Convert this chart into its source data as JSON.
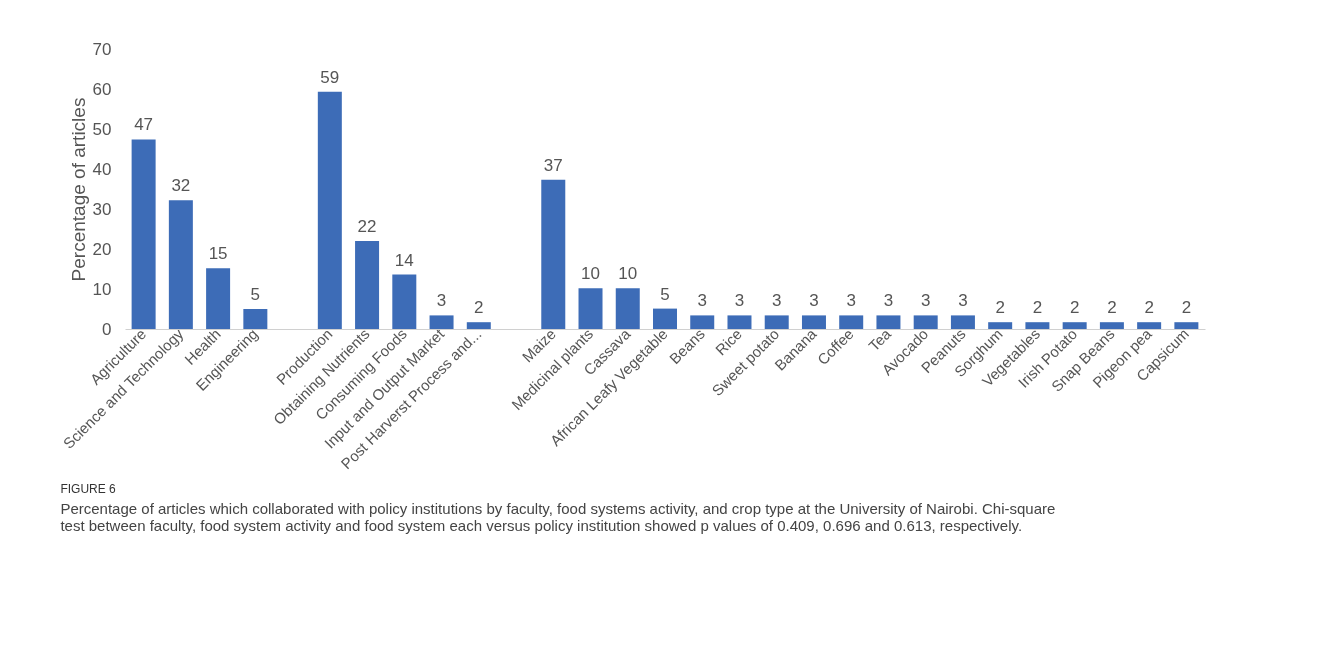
{
  "chart_data": {
    "type": "bar",
    "title": "FIGURE 6",
    "annotations": [
      "Percentage of articles which collaborated with policy institutions by faculty, food systems activity, and crop type at the University of Nairobi. Chi-square test between faculty, food system activity and food system each versus policy institution showed p values of 0.409, 0.696 and 0.613, respectively."
    ],
    "ylabel": "Percentage of articles",
    "categories": [
      "Agriculture",
      "Science and Technology",
      "Health",
      "Engineering",
      null,
      "Production",
      "Obtaining Nutrients",
      "Consuming Foods",
      "Input and Output Market",
      "Post Harverst Process and...",
      null,
      "Maize",
      "Medicinal plants",
      "Cassava",
      "African Leafy Vegetable",
      "Beans",
      "Rice",
      "Sweet potato",
      "Banana",
      "Coffee",
      "Tea",
      "Avocado",
      "Peanuts",
      "Sorghum",
      "Vegetables",
      "Irish Potato",
      "Snap Beans",
      "Pigeon pea",
      "Capsicum"
    ],
    "values": [
      47.4,
      32.2,
      15.2,
      5.0,
      null,
      59.3,
      22.0,
      13.6,
      3.4,
      1.7,
      null,
      37.3,
      10.2,
      10.2,
      5.1,
      3.4,
      3.4,
      3.4,
      3.4,
      3.4,
      3.4,
      3.4,
      3.4,
      1.7,
      1.7,
      1.7,
      1.7,
      1.7,
      1.7
    ],
    "value_labels": [
      "47",
      "32",
      "15",
      "5",
      null,
      "59",
      "22",
      "14",
      "3",
      "2",
      null,
      "37",
      "10",
      "10",
      "5",
      "3",
      "3",
      "3",
      "3",
      "3",
      "3",
      "3",
      "3",
      "2",
      "2",
      "2",
      "2",
      "2",
      "2"
    ],
    "color": "#3d6cb7",
    "ylim": [
      0,
      70
    ],
    "yticks": [
      0,
      10,
      20,
      30,
      40,
      50,
      60,
      70
    ],
    "grid": false
  }
}
